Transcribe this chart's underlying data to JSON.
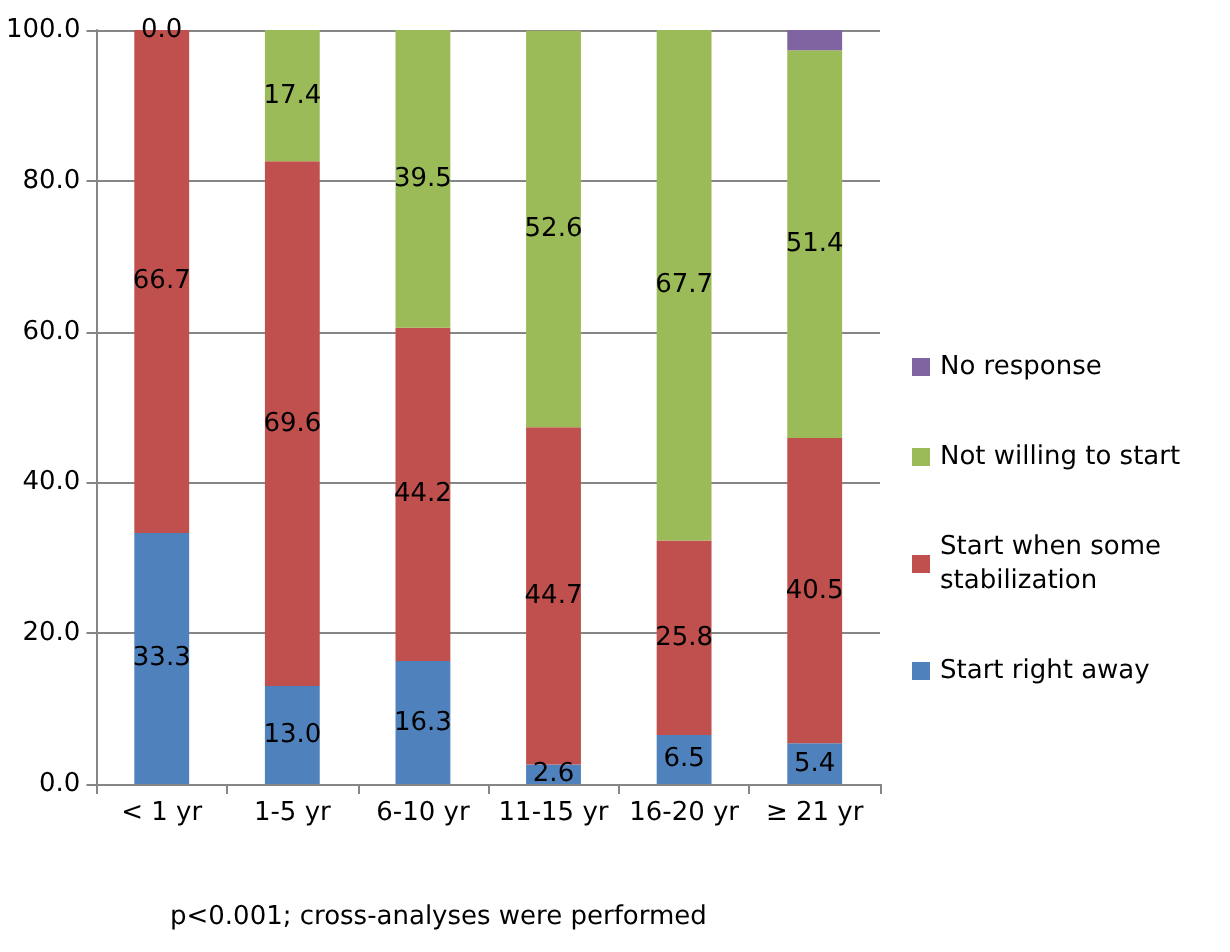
{
  "chart_data": {
    "type": "bar",
    "stacked": true,
    "categories": [
      "< 1 yr",
      "1-5 yr",
      "6-10 yr",
      "11-15 yr",
      "16-20 yr",
      "≥ 21 yr"
    ],
    "series": [
      {
        "name": "Start right away",
        "color": "#4f81bd",
        "values": [
          33.3,
          13.0,
          16.3,
          2.6,
          6.5,
          5.4
        ],
        "value_labels": [
          "33.3",
          "13.0",
          "16.3",
          "2.6",
          "6.5",
          "5.4"
        ]
      },
      {
        "name": "Start when some stabilization",
        "color": "#c0504d",
        "values": [
          66.7,
          69.6,
          44.2,
          44.7,
          25.8,
          40.5
        ],
        "value_labels": [
          "66.7",
          "69.6",
          "44.2",
          "44.7",
          "25.8",
          "40.5"
        ]
      },
      {
        "name": "Not willing to start",
        "color": "#9bbb59",
        "values": [
          0.0,
          17.4,
          39.5,
          52.6,
          67.7,
          51.4
        ],
        "value_labels": [
          "0.0",
          "17.4",
          "39.5",
          "52.6",
          "67.7",
          "51.4"
        ]
      },
      {
        "name": "No response",
        "color": "#8064a2",
        "values": [
          0,
          0,
          0,
          0,
          0,
          2.7
        ]
      }
    ],
    "ylim": [
      0,
      100
    ],
    "yticks": [
      {
        "value": 0,
        "label": "0.0"
      },
      {
        "value": 20,
        "label": "20.0"
      },
      {
        "value": 40,
        "label": "40.0"
      },
      {
        "value": 60,
        "label": "60.0"
      },
      {
        "value": 80,
        "label": "80.0"
      },
      {
        "value": 100,
        "label": "100.0"
      }
    ],
    "grid": "y",
    "legend": "right",
    "annotations": [
      "p<0.001; cross-analyses were performed"
    ]
  }
}
